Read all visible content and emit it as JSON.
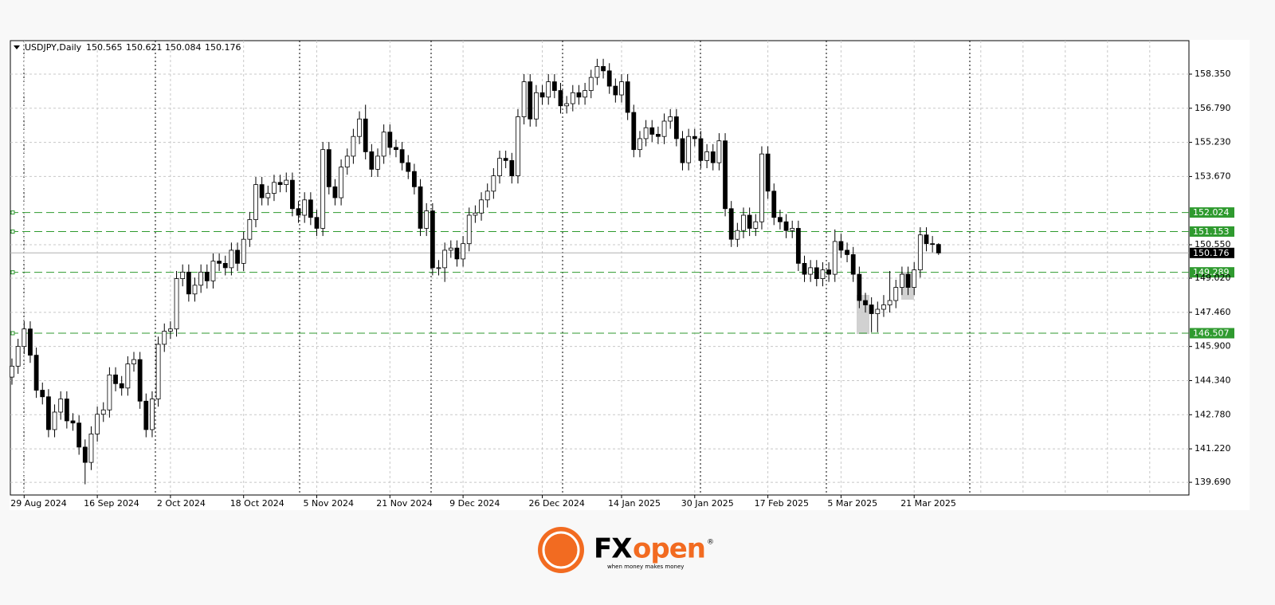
{
  "chart_data": {
    "type": "candlestick",
    "symbol": "USDJPY,Daily",
    "categories": [
      null,
      null,
      "29 Aug 2024",
      null,
      null,
      null,
      null,
      null,
      null,
      null,
      null,
      null,
      null,
      null,
      "16 Sep 2024",
      null,
      null,
      null,
      null,
      null,
      null,
      null,
      null,
      null,
      null,
      null,
      "2 Oct 2024",
      null,
      null,
      null,
      null,
      null,
      null,
      null,
      null,
      null,
      null,
      null,
      "18 Oct 2024",
      null,
      null,
      null,
      null,
      null,
      null,
      null,
      null,
      null,
      null,
      null,
      "5 Nov 2024",
      null,
      null,
      null,
      null,
      null,
      null,
      null,
      null,
      null,
      null,
      null,
      "21 Nov 2024",
      null,
      null,
      null,
      null,
      null,
      null,
      null,
      null,
      null,
      null,
      null,
      "9 Dec 2024",
      null,
      null,
      null,
      null,
      null,
      null,
      null,
      null,
      null,
      null,
      null,
      null,
      "26 Dec 2024",
      null,
      null,
      null,
      null,
      null,
      null,
      null,
      null,
      null,
      null,
      null,
      null,
      "14 Jan 2025",
      null,
      null,
      null,
      null,
      null,
      null,
      null,
      null,
      null,
      null,
      null,
      "30 Jan 2025",
      null,
      null,
      null,
      null,
      null,
      null,
      null,
      null,
      null,
      null,
      null,
      "17 Feb 2025",
      null,
      null,
      null,
      null,
      null,
      null,
      null,
      null,
      null,
      null,
      null,
      "5 Mar 2025",
      null,
      null,
      null,
      null,
      null,
      null,
      null,
      null,
      null,
      null,
      null,
      "21 Mar 2025",
      null,
      null,
      null,
      null
    ],
    "ohlc": [
      [
        144.5,
        145.35,
        144.15,
        145.0
      ],
      [
        145.0,
        146.25,
        144.65,
        145.9
      ],
      [
        145.9,
        147.05,
        145.55,
        146.7
      ],
      [
        146.7,
        147.05,
        145.15,
        145.5
      ],
      [
        145.5,
        145.85,
        143.55,
        143.9
      ],
      [
        143.9,
        144.25,
        143.25,
        143.6
      ],
      [
        143.6,
        143.95,
        141.75,
        142.1
      ],
      [
        142.1,
        143.25,
        141.75,
        142.9
      ],
      [
        142.9,
        143.85,
        142.55,
        143.5
      ],
      [
        143.5,
        143.85,
        142.15,
        142.5
      ],
      [
        142.5,
        142.85,
        142.05,
        142.4
      ],
      [
        142.4,
        142.75,
        140.95,
        141.3
      ],
      [
        141.3,
        141.65,
        139.6,
        140.6
      ],
      [
        140.6,
        142.25,
        140.25,
        141.9
      ],
      [
        141.9,
        143.15,
        141.55,
        142.8
      ],
      [
        142.8,
        143.35,
        142.45,
        143.0
      ],
      [
        143.0,
        144.95,
        142.65,
        144.6
      ],
      [
        144.6,
        144.95,
        143.85,
        144.2
      ],
      [
        144.2,
        144.55,
        143.65,
        144.0
      ],
      [
        144.0,
        145.45,
        143.65,
        145.1
      ],
      [
        145.1,
        145.65,
        144.75,
        145.3
      ],
      [
        145.3,
        145.65,
        143.05,
        143.4
      ],
      [
        143.4,
        143.75,
        141.75,
        142.1
      ],
      [
        142.1,
        143.85,
        141.75,
        143.5
      ],
      [
        143.5,
        146.35,
        143.15,
        146.0
      ],
      [
        146.0,
        146.95,
        145.65,
        146.6
      ],
      [
        146.6,
        147.05,
        146.25,
        146.7
      ],
      [
        146.7,
        149.35,
        146.35,
        149.0
      ],
      [
        149.0,
        149.65,
        148.65,
        149.3
      ],
      [
        149.3,
        149.65,
        147.95,
        148.3
      ],
      [
        148.3,
        149.05,
        147.95,
        148.7
      ],
      [
        148.7,
        149.65,
        148.35,
        149.3
      ],
      [
        149.3,
        149.65,
        148.55,
        148.9
      ],
      [
        148.9,
        150.15,
        148.55,
        149.8
      ],
      [
        149.8,
        150.15,
        149.35,
        149.7
      ],
      [
        149.7,
        150.05,
        149.15,
        149.5
      ],
      [
        149.5,
        150.65,
        149.15,
        150.3
      ],
      [
        150.3,
        150.65,
        149.35,
        149.7
      ],
      [
        149.7,
        151.15,
        149.35,
        150.8
      ],
      [
        150.8,
        152.05,
        150.45,
        151.7
      ],
      [
        151.7,
        153.65,
        151.35,
        153.3
      ],
      [
        153.3,
        153.65,
        152.35,
        152.7
      ],
      [
        152.7,
        153.25,
        152.35,
        152.9
      ],
      [
        152.9,
        153.75,
        152.55,
        153.4
      ],
      [
        153.4,
        153.75,
        152.95,
        153.3
      ],
      [
        153.3,
        153.85,
        152.95,
        153.5
      ],
      [
        153.5,
        153.85,
        151.85,
        152.2
      ],
      [
        152.2,
        152.55,
        151.55,
        151.9
      ],
      [
        151.9,
        152.95,
        151.55,
        152.6
      ],
      [
        152.6,
        152.95,
        151.45,
        151.8
      ],
      [
        151.8,
        152.15,
        150.95,
        151.3
      ],
      [
        151.3,
        155.25,
        150.95,
        154.9
      ],
      [
        154.9,
        155.25,
        152.85,
        153.2
      ],
      [
        153.2,
        153.55,
        152.35,
        152.7
      ],
      [
        152.7,
        154.45,
        152.35,
        154.1
      ],
      [
        154.1,
        154.95,
        153.75,
        154.6
      ],
      [
        154.6,
        155.85,
        154.25,
        155.5
      ],
      [
        155.5,
        156.65,
        155.15,
        156.3
      ],
      [
        156.3,
        156.95,
        154.45,
        154.8
      ],
      [
        154.8,
        155.15,
        153.65,
        154.0
      ],
      [
        154.0,
        154.95,
        153.65,
        154.6
      ],
      [
        154.6,
        156.05,
        154.25,
        155.7
      ],
      [
        155.7,
        156.05,
        154.65,
        155.0
      ],
      [
        155.0,
        155.35,
        154.55,
        154.9
      ],
      [
        154.9,
        155.25,
        153.95,
        154.3
      ],
      [
        154.3,
        154.65,
        153.55,
        153.9
      ],
      [
        153.9,
        154.25,
        152.85,
        153.2
      ],
      [
        153.2,
        153.55,
        150.95,
        151.3
      ],
      [
        151.3,
        152.45,
        150.95,
        152.1
      ],
      [
        152.1,
        152.45,
        149.15,
        149.5
      ],
      [
        149.5,
        149.85,
        149.15,
        149.5
      ],
      [
        149.5,
        150.65,
        148.85,
        150.3
      ],
      [
        150.3,
        150.75,
        149.95,
        150.4
      ],
      [
        150.4,
        150.75,
        149.55,
        149.9
      ],
      [
        149.9,
        150.95,
        149.55,
        150.6
      ],
      [
        150.6,
        152.25,
        150.25,
        151.9
      ],
      [
        151.9,
        152.35,
        151.55,
        152.0
      ],
      [
        152.0,
        152.95,
        151.65,
        152.6
      ],
      [
        152.6,
        153.35,
        152.25,
        153.0
      ],
      [
        153.0,
        154.05,
        152.65,
        153.7
      ],
      [
        153.7,
        154.85,
        153.35,
        154.5
      ],
      [
        154.5,
        154.85,
        154.05,
        154.4
      ],
      [
        154.4,
        154.75,
        153.35,
        153.7
      ],
      [
        153.7,
        156.75,
        153.35,
        156.4
      ],
      [
        156.4,
        158.35,
        156.05,
        158.0
      ],
      [
        158.0,
        158.35,
        155.95,
        156.3
      ],
      [
        156.3,
        157.85,
        155.95,
        157.5
      ],
      [
        157.5,
        157.85,
        156.95,
        157.3
      ],
      [
        157.3,
        158.35,
        156.95,
        158.0
      ],
      [
        158.0,
        158.35,
        157.25,
        157.6
      ],
      [
        157.6,
        157.95,
        156.55,
        156.9
      ],
      [
        156.9,
        157.35,
        156.55,
        157.0
      ],
      [
        157.0,
        157.85,
        156.65,
        157.5
      ],
      [
        157.5,
        157.85,
        156.95,
        157.3
      ],
      [
        157.3,
        157.95,
        156.95,
        157.6
      ],
      [
        157.6,
        158.55,
        157.25,
        158.2
      ],
      [
        158.2,
        159.05,
        157.85,
        158.7
      ],
      [
        158.7,
        159.05,
        158.15,
        158.5
      ],
      [
        158.5,
        158.85,
        157.45,
        157.8
      ],
      [
        157.8,
        158.15,
        157.05,
        157.4
      ],
      [
        157.4,
        158.35,
        157.05,
        158.0
      ],
      [
        158.0,
        158.35,
        156.25,
        156.6
      ],
      [
        156.6,
        156.95,
        154.55,
        154.9
      ],
      [
        154.9,
        155.75,
        154.55,
        155.4
      ],
      [
        155.4,
        156.25,
        155.05,
        155.9
      ],
      [
        155.9,
        156.25,
        155.25,
        155.6
      ],
      [
        155.6,
        155.95,
        155.15,
        155.5
      ],
      [
        155.5,
        156.55,
        155.15,
        156.2
      ],
      [
        156.2,
        156.75,
        155.85,
        156.4
      ],
      [
        156.4,
        156.75,
        155.05,
        155.4
      ],
      [
        155.4,
        155.75,
        153.95,
        154.3
      ],
      [
        154.3,
        155.85,
        153.95,
        155.5
      ],
      [
        155.5,
        155.85,
        155.05,
        155.4
      ],
      [
        155.4,
        155.75,
        154.05,
        154.4
      ],
      [
        154.4,
        155.15,
        154.05,
        154.8
      ],
      [
        154.8,
        155.15,
        153.95,
        154.3
      ],
      [
        154.3,
        155.65,
        153.95,
        155.3
      ],
      [
        155.3,
        155.65,
        151.85,
        152.2
      ],
      [
        152.2,
        152.55,
        150.45,
        150.8
      ],
      [
        150.8,
        151.55,
        150.45,
        151.2
      ],
      [
        151.2,
        152.25,
        150.85,
        151.9
      ],
      [
        151.9,
        152.25,
        150.95,
        151.3
      ],
      [
        151.3,
        151.95,
        150.95,
        151.6
      ],
      [
        151.6,
        155.05,
        151.25,
        154.7
      ],
      [
        154.7,
        155.05,
        152.65,
        153.0
      ],
      [
        153.0,
        153.35,
        151.45,
        151.8
      ],
      [
        151.8,
        152.15,
        151.25,
        151.6
      ],
      [
        151.6,
        151.95,
        150.85,
        151.2
      ],
      [
        151.2,
        151.65,
        150.85,
        151.3
      ],
      [
        151.3,
        151.65,
        149.35,
        149.7
      ],
      [
        149.7,
        150.05,
        148.85,
        149.2
      ],
      [
        149.2,
        149.85,
        148.85,
        149.5
      ],
      [
        149.5,
        149.85,
        148.65,
        149.0
      ],
      [
        149.0,
        149.75,
        148.65,
        149.4
      ],
      [
        149.4,
        149.75,
        148.85,
        149.2
      ],
      [
        149.2,
        151.25,
        148.85,
        150.7
      ],
      [
        150.7,
        151.05,
        149.95,
        150.3
      ],
      [
        150.3,
        150.65,
        149.75,
        150.1
      ],
      [
        150.1,
        150.45,
        148.85,
        149.2
      ],
      [
        149.2,
        149.55,
        147.65,
        148.0
      ],
      [
        148.0,
        148.35,
        147.45,
        147.8
      ],
      [
        147.8,
        148.15,
        146.55,
        147.4
      ],
      [
        147.4,
        147.95,
        146.55,
        147.6
      ],
      [
        147.6,
        148.25,
        147.25,
        147.8
      ],
      [
        147.8,
        149.35,
        147.45,
        148.0
      ],
      [
        148.0,
        148.95,
        147.65,
        148.6
      ],
      [
        148.6,
        149.55,
        148.25,
        149.2
      ],
      [
        149.2,
        149.55,
        148.25,
        148.6
      ],
      [
        148.6,
        149.75,
        148.25,
        149.4
      ],
      [
        149.4,
        151.35,
        149.05,
        151.0
      ],
      [
        151.0,
        151.35,
        150.25,
        150.6
      ],
      [
        150.6,
        150.95,
        150.2,
        150.565
      ],
      [
        150.565,
        150.621,
        150.084,
        150.176
      ]
    ],
    "ylim": [
      139.11,
      159.88
    ],
    "yticks": [
      {
        "value": 139.69,
        "label": "139.690"
      },
      {
        "value": 141.22,
        "label": "141.220"
      },
      {
        "value": 142.78,
        "label": "142.780"
      },
      {
        "value": 144.34,
        "label": "144.340"
      },
      {
        "value": 145.9,
        "label": "145.900"
      },
      {
        "value": 147.46,
        "label": "147.460"
      },
      {
        "value": 149.02,
        "label": "149.020"
      },
      {
        "value": 150.55,
        "label": "150.550"
      },
      {
        "value": 153.67,
        "label": "153.670"
      },
      {
        "value": 155.23,
        "label": "155.230"
      },
      {
        "value": 156.79,
        "label": "156.790"
      },
      {
        "value": 158.35,
        "label": "158.350"
      }
    ],
    "levels": [
      152.024,
      151.153,
      149.289,
      146.507
    ],
    "level_color": "#2f9a2f",
    "up_color": "#ffffff",
    "down_color": "#000000",
    "grid": true
  },
  "logo": {
    "part1": "FX",
    "part2": "open",
    "mark": "®",
    "tagline": "when money makes money"
  }
}
